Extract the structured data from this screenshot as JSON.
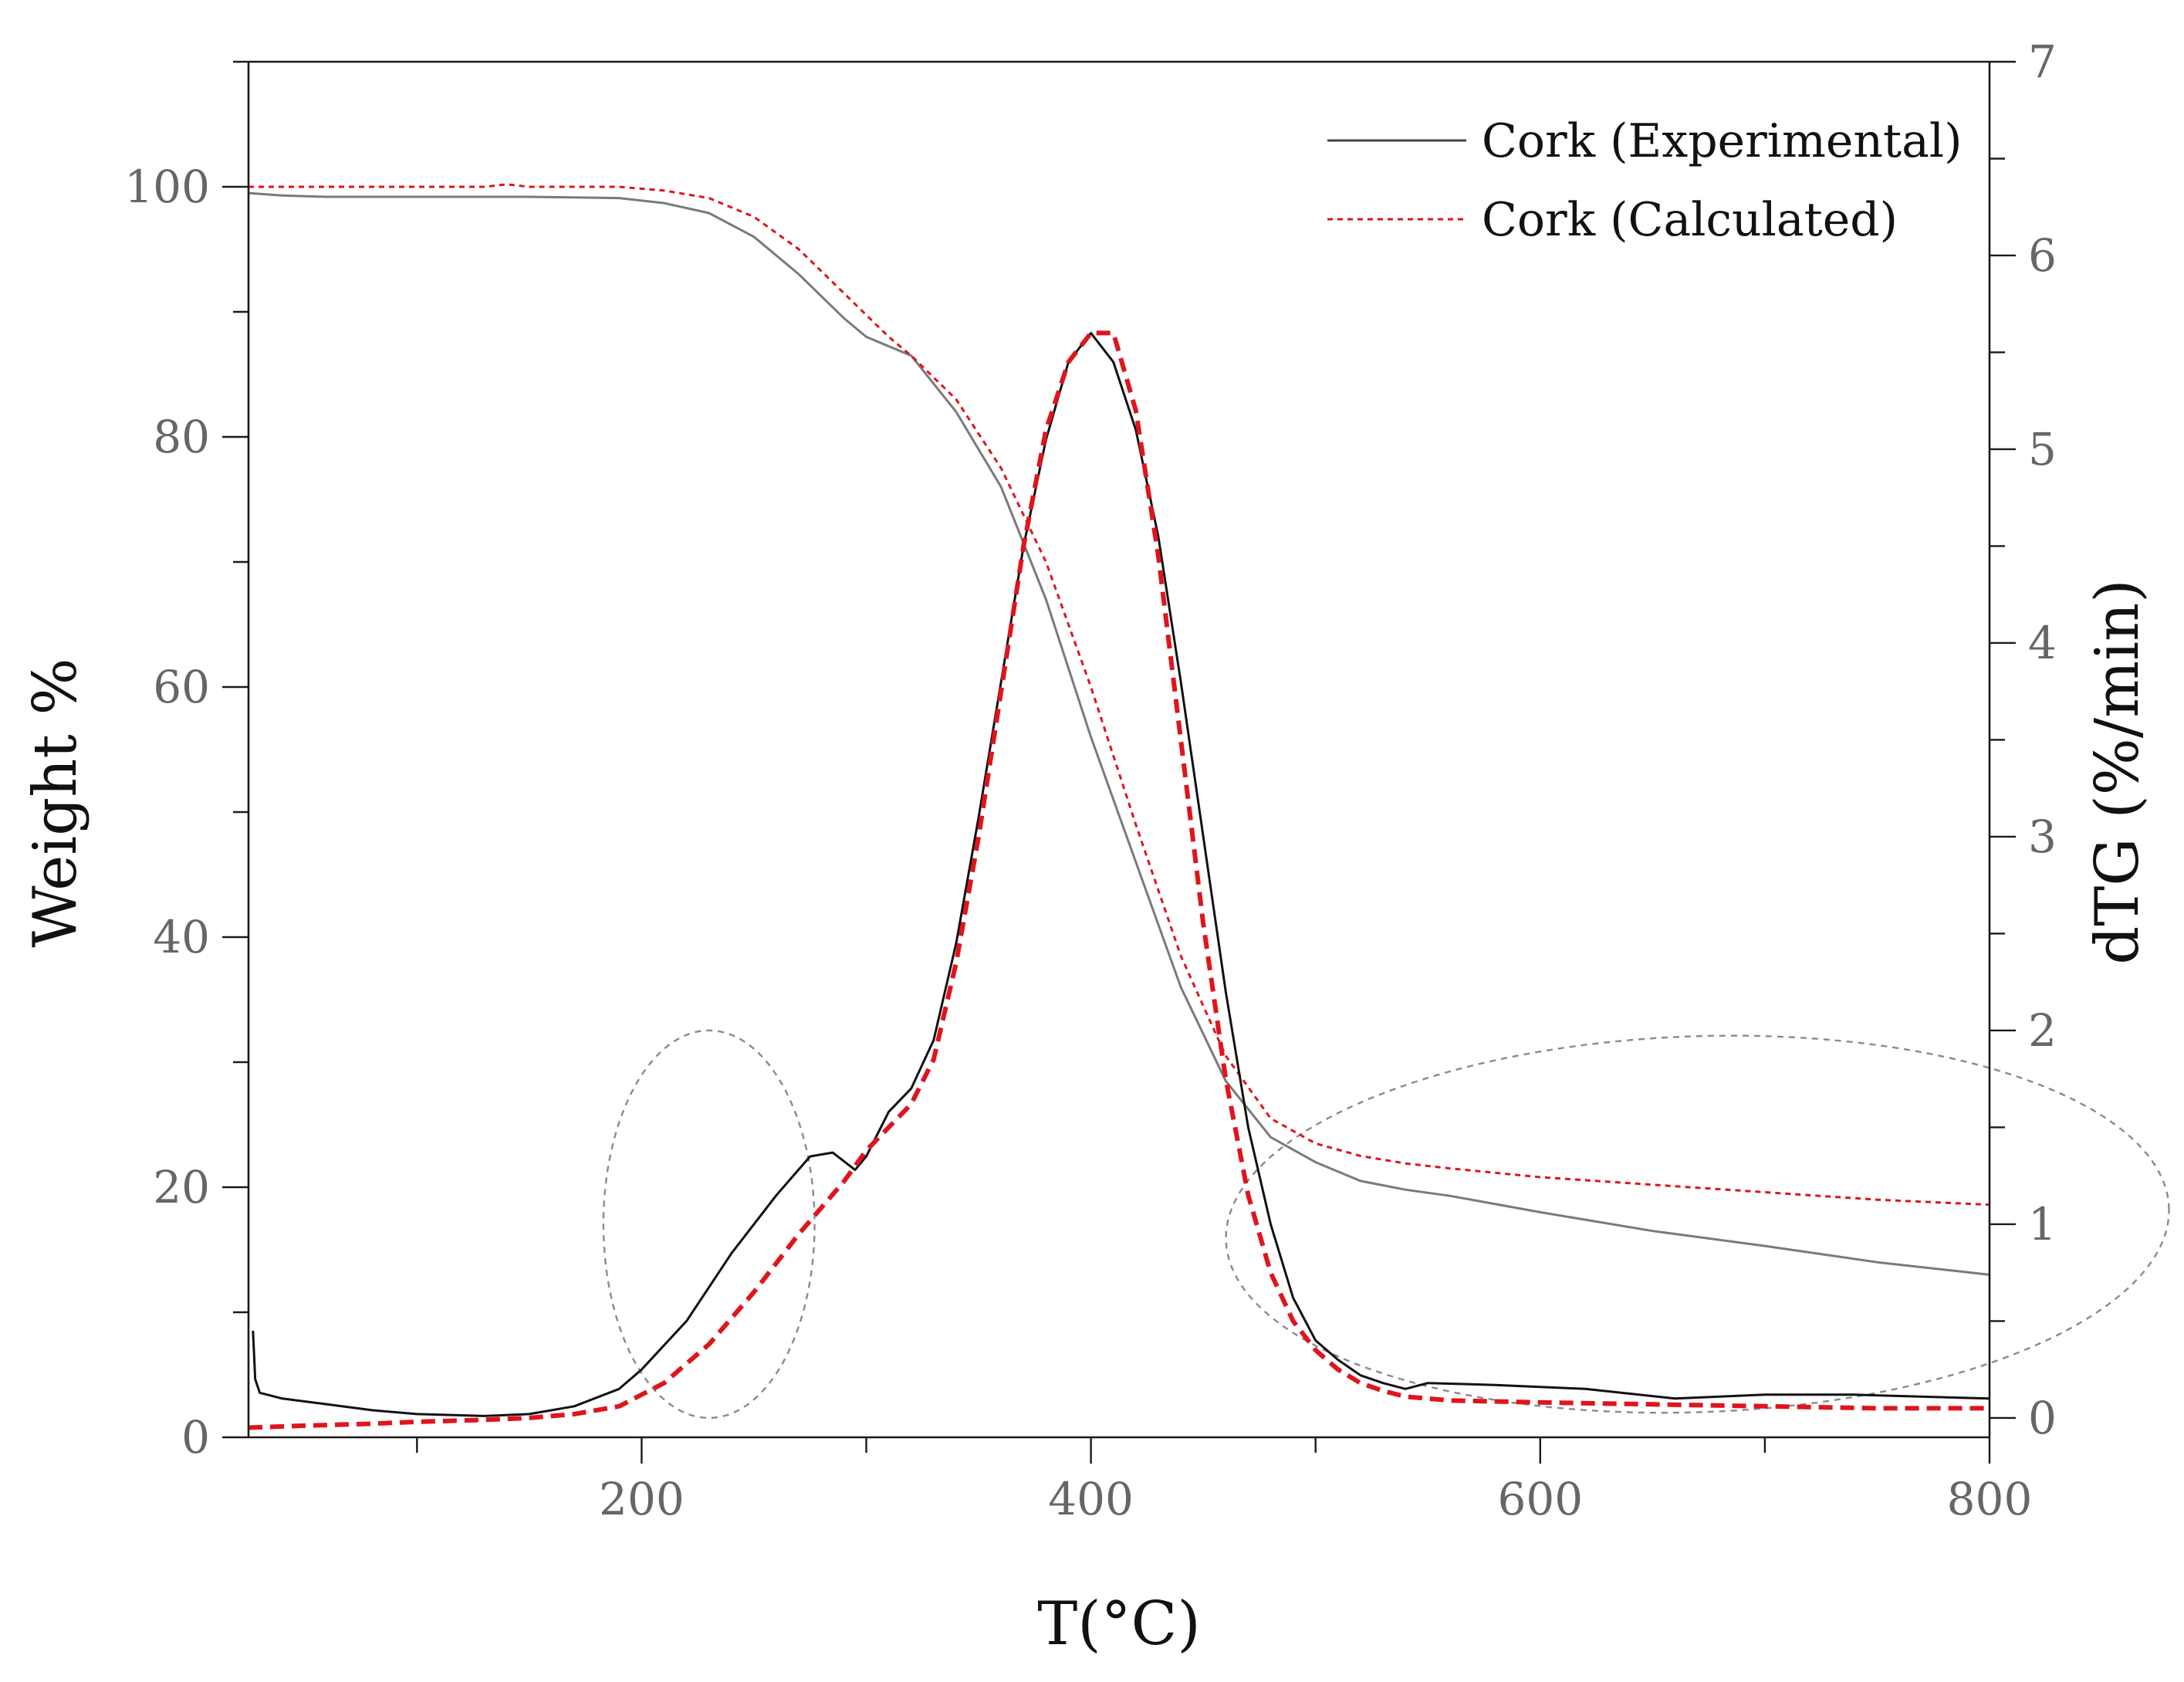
{
  "chart_data": {
    "type": "line",
    "title": "",
    "xlabel": "T(°C)",
    "ylabel": "Weight %",
    "y2label": "dTG (%/min)",
    "xlim": [
      25,
      800
    ],
    "ylim": [
      0,
      110
    ],
    "y2lim": [
      -0.1,
      7
    ],
    "x_ticks": [
      200,
      400,
      600,
      800
    ],
    "x_tick_labels": [
      "200",
      "400",
      "600",
      "800"
    ],
    "y_ticks": [
      0,
      20,
      40,
      60,
      80,
      100
    ],
    "y_tick_labels": [
      "0",
      "20",
      "40",
      "60",
      "80",
      "100"
    ],
    "y2_ticks": [
      0,
      1,
      2,
      3,
      4,
      5,
      6,
      7
    ],
    "y2_tick_labels": [
      "0",
      "1",
      "2",
      "3",
      "4",
      "5",
      "6",
      "7"
    ],
    "legend_position": "top-right",
    "legend": [
      {
        "label": "Cork (Experimental)",
        "color": "#444444",
        "style": "solid"
      },
      {
        "label": "Cork (Calculated)",
        "color": "#e0141c",
        "style": "dashed"
      }
    ],
    "series": [
      {
        "name": "Cork (Experimental) TG",
        "axis": "y",
        "color": "#7a7a7a",
        "style": "solid",
        "width": 3,
        "x": [
          25,
          40,
          60,
          100,
          150,
          190,
          210,
          230,
          250,
          270,
          290,
          300,
          320,
          340,
          360,
          380,
          400,
          420,
          440,
          460,
          480,
          500,
          520,
          540,
          560,
          600,
          650,
          700,
          750,
          800
        ],
        "y": [
          99.5,
          99.3,
          99.2,
          99.2,
          99.2,
          99.1,
          98.7,
          97.9,
          96.0,
          93.0,
          89.5,
          88.0,
          86.5,
          82.0,
          76.0,
          67.0,
          56.0,
          46.0,
          36.0,
          28.5,
          24.0,
          22.0,
          20.5,
          19.8,
          19.3,
          18.0,
          16.5,
          15.3,
          14.0,
          13.0
        ]
      },
      {
        "name": "Cork (Calculated) TG",
        "axis": "y",
        "color": "#e0141c",
        "style": "dotted",
        "width": 3,
        "x": [
          25,
          60,
          100,
          130,
          140,
          150,
          190,
          210,
          230,
          250,
          270,
          290,
          310,
          320,
          340,
          360,
          380,
          400,
          420,
          440,
          460,
          480,
          500,
          520,
          540,
          560,
          600,
          650,
          700,
          750,
          800
        ],
        "y": [
          100.0,
          100.0,
          100.0,
          100.0,
          100.2,
          100.0,
          100.0,
          99.7,
          99.1,
          97.6,
          95.0,
          91.5,
          88.0,
          86.5,
          83.0,
          77.5,
          70.0,
          60.0,
          49.0,
          38.5,
          30.5,
          25.5,
          23.5,
          22.5,
          21.9,
          21.5,
          20.8,
          20.2,
          19.6,
          19.0,
          18.6
        ]
      },
      {
        "name": "Cork (Experimental) dTG",
        "axis": "y2",
        "color": "#111111",
        "style": "solid",
        "width": 3,
        "x": [
          27,
          28,
          30,
          40,
          60,
          80,
          100,
          130,
          150,
          170,
          190,
          200,
          220,
          240,
          260,
          275,
          285,
          295,
          300,
          310,
          320,
          330,
          340,
          350,
          360,
          370,
          380,
          390,
          400,
          410,
          420,
          430,
          440,
          450,
          460,
          470,
          480,
          490,
          500,
          510,
          520,
          530,
          540,
          550,
          580,
          620,
          660,
          700,
          740,
          800
        ],
        "y": [
          0.45,
          0.2,
          0.13,
          0.1,
          0.07,
          0.04,
          0.02,
          0.01,
          0.02,
          0.06,
          0.15,
          0.25,
          0.5,
          0.85,
          1.15,
          1.35,
          1.37,
          1.28,
          1.35,
          1.58,
          1.7,
          1.95,
          2.45,
          3.1,
          3.8,
          4.5,
          5.05,
          5.45,
          5.6,
          5.45,
          5.1,
          4.55,
          3.8,
          3.0,
          2.2,
          1.5,
          1.0,
          0.62,
          0.4,
          0.3,
          0.22,
          0.18,
          0.15,
          0.18,
          0.17,
          0.15,
          0.1,
          0.12,
          0.12,
          0.1
        ]
      },
      {
        "name": "Cork (Calculated) dTG",
        "axis": "y2",
        "color": "#e0141c",
        "style": "dashed",
        "width": 6,
        "x": [
          25,
          50,
          80,
          100,
          130,
          150,
          170,
          190,
          210,
          230,
          250,
          270,
          290,
          300,
          310,
          320,
          330,
          340,
          350,
          360,
          370,
          380,
          390,
          400,
          410,
          420,
          430,
          440,
          450,
          460,
          470,
          480,
          490,
          500,
          510,
          520,
          530,
          540,
          560,
          600,
          650,
          700,
          750,
          800
        ],
        "y": [
          -0.05,
          -0.04,
          -0.03,
          -0.02,
          -0.01,
          0.0,
          0.02,
          0.06,
          0.18,
          0.38,
          0.65,
          0.95,
          1.22,
          1.38,
          1.5,
          1.62,
          1.85,
          2.35,
          3.0,
          3.75,
          4.5,
          5.1,
          5.45,
          5.6,
          5.6,
          5.2,
          4.45,
          3.5,
          2.55,
          1.75,
          1.15,
          0.75,
          0.5,
          0.35,
          0.25,
          0.18,
          0.14,
          0.11,
          0.09,
          0.08,
          0.07,
          0.06,
          0.05,
          0.05
        ]
      }
    ],
    "annotations": [
      {
        "shape": "dashed-circle",
        "around": "T 230 °C shoulder",
        "x": 230,
        "y2": 1.0,
        "rx_data": 47,
        "ry_data": 1.0
      },
      {
        "shape": "dashed-ellipse",
        "around": "T 490–800 °C residue",
        "x": 670,
        "y2": 1.0,
        "rx_data": 210,
        "ry_data": 0.97
      }
    ]
  }
}
